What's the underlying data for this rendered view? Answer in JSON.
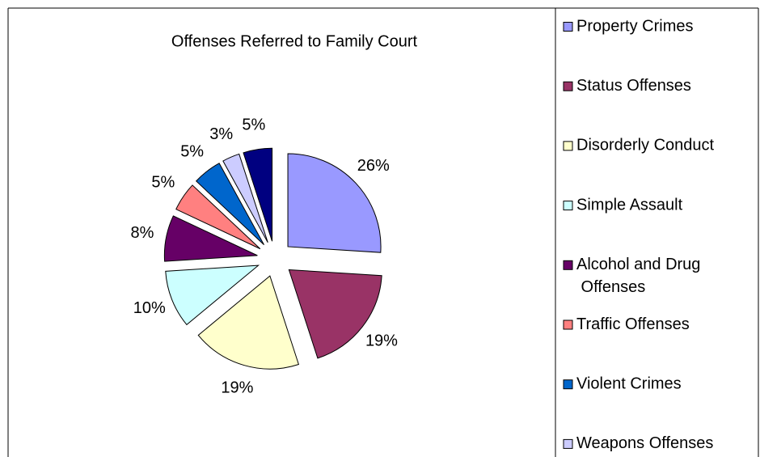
{
  "chart_data": {
    "type": "pie",
    "title": "Offenses Referred to Family Court",
    "categories": [
      "Property Crimes",
      "Status Offenses",
      "Disorderly Conduct",
      "Simple Assault",
      "Alcohol and Drug Offenses",
      "Traffic Offenses",
      "Violent Crimes",
      "Weapons Offenses",
      null
    ],
    "values": [
      26,
      19,
      19,
      10,
      8,
      5,
      5,
      3,
      5
    ],
    "value_labels": [
      "26%",
      "19%",
      "19%",
      "10%",
      "8%",
      "5%",
      "5%",
      "3%",
      "5%"
    ],
    "colors": [
      "#9999ff",
      "#993366",
      "#ffffcc",
      "#ccffff",
      "#660066",
      "#ff8080",
      "#0066cc",
      "#ccccff",
      "#000080"
    ],
    "legend": "right"
  }
}
